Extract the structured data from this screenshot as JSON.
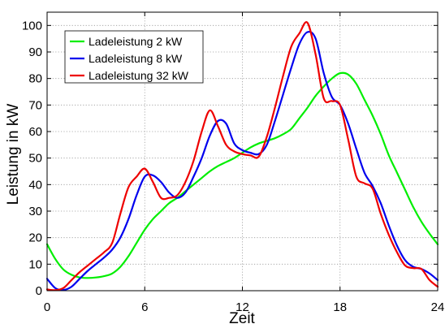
{
  "chart_data": {
    "type": "line",
    "xlabel": "Zeit",
    "ylabel": "Leistung in kW",
    "xlim": [
      0,
      24
    ],
    "ylim": [
      0,
      105
    ],
    "xticks": [
      0,
      6,
      12,
      18,
      24
    ],
    "yticks": [
      0,
      10,
      20,
      30,
      40,
      50,
      60,
      70,
      80,
      90,
      100
    ],
    "grid": true,
    "legend_position": "top-left",
    "series": [
      {
        "name": "Ladeleistung 2 kW",
        "color": "#00ee00",
        "x": [
          0,
          0.5,
          1,
          1.5,
          2,
          2.5,
          3,
          3.5,
          4,
          4.5,
          5,
          5.5,
          6,
          6.5,
          7,
          7.5,
          8,
          8.5,
          9,
          9.5,
          10,
          10.5,
          11,
          11.5,
          12,
          12.5,
          13,
          13.5,
          14,
          14.5,
          15,
          15.5,
          16,
          16.5,
          17,
          17.5,
          18,
          18.5,
          19,
          19.5,
          20,
          20.5,
          21,
          21.5,
          22,
          22.5,
          23,
          23.5,
          24
        ],
        "y": [
          17.5,
          12,
          8,
          6,
          5,
          4.8,
          5,
          5.5,
          6.5,
          9,
          13,
          18,
          23,
          27,
          30,
          33,
          35,
          37.5,
          40,
          42.5,
          45,
          47,
          48.5,
          50,
          52,
          54,
          55.5,
          56.5,
          57.5,
          59,
          61,
          65,
          69,
          73.5,
          77,
          80,
          82,
          81.5,
          78,
          72,
          66,
          59,
          51,
          44.5,
          38,
          31.5,
          26,
          21.5,
          17.5
        ]
      },
      {
        "name": "Ladeleistung 8 kW",
        "color": "#0000ee",
        "x": [
          0,
          0.5,
          1,
          1.5,
          2,
          2.5,
          3,
          3.5,
          4,
          4.5,
          5,
          5.5,
          6,
          6.5,
          7,
          7.5,
          8,
          8.5,
          9,
          9.5,
          10,
          10.5,
          11,
          11.5,
          12,
          12.5,
          13,
          13.5,
          14,
          14.5,
          15,
          15.5,
          16,
          16.5,
          17,
          17.5,
          18,
          18.5,
          19,
          19.5,
          20,
          20.5,
          21,
          21.5,
          22,
          22.5,
          23,
          23.5,
          24
        ],
        "y": [
          4.5,
          1,
          0.3,
          1.5,
          4.5,
          7.5,
          10,
          12.5,
          15.5,
          20,
          27,
          36,
          43,
          43.5,
          41,
          37,
          35,
          37,
          43,
          50,
          58.5,
          64,
          63,
          55.5,
          53,
          52,
          51.5,
          55,
          64,
          74,
          84,
          93,
          97.5,
          95,
          82,
          73,
          70,
          63,
          53.5,
          44.5,
          39.5,
          33,
          24.5,
          17,
          11.5,
          9,
          8.2,
          6.5,
          4
        ]
      },
      {
        "name": "Ladeleistung 32 kW",
        "color": "#ee0000",
        "x": [
          0,
          0.5,
          1,
          1.5,
          2,
          2.5,
          3,
          3.5,
          4,
          4.5,
          5,
          5.5,
          6,
          6.5,
          7,
          7.5,
          8,
          8.5,
          9,
          9.5,
          10,
          10.5,
          11,
          11.5,
          12,
          12.5,
          13,
          13.5,
          14,
          14.5,
          15,
          15.5,
          16,
          16.5,
          17,
          17.5,
          18,
          18.5,
          19,
          19.5,
          20,
          20.5,
          21,
          21.5,
          22,
          22.5,
          23,
          23.5,
          24
        ],
        "y": [
          0.5,
          0.2,
          1,
          4,
          7,
          9.5,
          12,
          14.5,
          18,
          29,
          39,
          43,
          46,
          41,
          35,
          35,
          36,
          41,
          49,
          60,
          68,
          62,
          55,
          52.5,
          51.5,
          51,
          50.5,
          58,
          69,
          81,
          92,
          97,
          101,
          89,
          72.5,
          71.5,
          70,
          57,
          43,
          40.5,
          38.5,
          29,
          21,
          14.5,
          9.5,
          8.5,
          8.2,
          4,
          1.5
        ]
      }
    ]
  }
}
